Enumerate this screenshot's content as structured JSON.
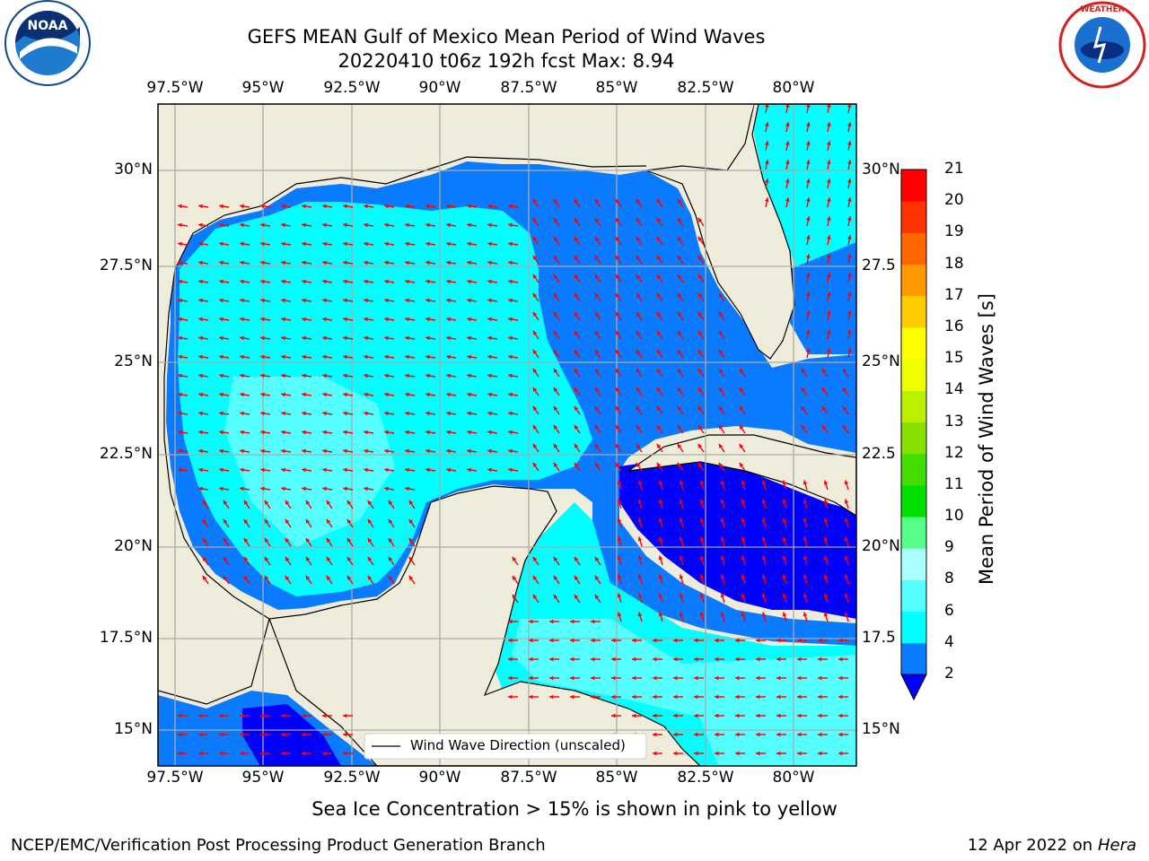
{
  "title": {
    "line1": "GEFS MEAN Gulf of Mexico Mean Period of Wind Waves",
    "line2": "20220410 t06z 192h fcst   Max: 8.94"
  },
  "axes": {
    "lon_labels": [
      "97.5°W",
      "95°W",
      "92.5°W",
      "90°W",
      "87.5°W",
      "85°W",
      "82.5°W",
      "80°W"
    ],
    "lat_labels_left": [
      "30°N",
      "27.5°N",
      "25°N",
      "22.5°N",
      "20°N",
      "17.5°N",
      "15°N"
    ],
    "lat_labels_right": [
      "30°N",
      "27.5",
      "25°N",
      "22.5",
      "20°N",
      "17.5",
      "15°N"
    ]
  },
  "colorbar": {
    "label": "Mean Period of Wind Waves [s]",
    "ticks": [
      "2",
      "4",
      "6",
      "8",
      "9",
      "10",
      "11",
      "12",
      "13",
      "14",
      "15",
      "16",
      "17",
      "18",
      "19",
      "20",
      "21"
    ],
    "colors": [
      "#0000ff",
      "#0a7aff",
      "#00ffff",
      "#55ffff",
      "#aaffff",
      "#55ff88",
      "#00e000",
      "#44dd00",
      "#88e000",
      "#bbf000",
      "#eeff00",
      "#ffff00",
      "#ffcc00",
      "#ff9900",
      "#ff6600",
      "#ff3300",
      "#ff0000"
    ]
  },
  "legend": {
    "label": "Wind Wave Direction (unscaled)"
  },
  "note": "Sea Ice Concentration > 15% is shown in pink to yellow",
  "footer": {
    "left": "NCEP/EMC/Verification Post Processing Product Generation Branch",
    "right_date": "12 Apr 2022 on ",
    "right_host": "Hera"
  },
  "logos": {
    "left": "NOAA",
    "right": "NATIONAL WEATHER SERVICE"
  }
}
